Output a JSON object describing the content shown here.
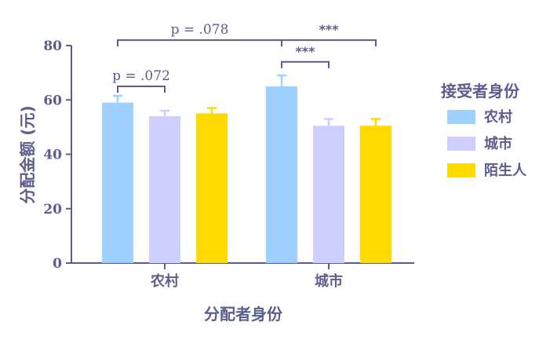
{
  "chart_data": {
    "type": "bar",
    "categories": [
      "农村",
      "城市"
    ],
    "series": [
      {
        "name": "农村",
        "color": "#9fd1ff",
        "values": [
          59,
          65
        ],
        "errors": [
          2.5,
          4
        ]
      },
      {
        "name": "城市",
        "color": "#cfcfff",
        "values": [
          54,
          50.5
        ],
        "errors": [
          2,
          2.5
        ]
      },
      {
        "name": "陌生人",
        "color": "#ffd900",
        "values": [
          55,
          50.5
        ],
        "errors": [
          2,
          2.5
        ]
      }
    ],
    "xlabel": "分配者身份",
    "ylabel": "分配金额 (元)",
    "ylim": [
      0,
      80
    ],
    "yticks": [
      0,
      20,
      40,
      60,
      80
    ],
    "legend": {
      "title": "接受者身份",
      "position": "right"
    },
    "annotations": [
      {
        "text": "p = .072",
        "type": "p-value",
        "from_category": "农村",
        "from_series": "农村",
        "to_category": "农村",
        "to_series": "城市",
        "level": 65
      },
      {
        "text": "***",
        "type": "stars",
        "from_category": "城市",
        "from_series": "农村",
        "to_category": "城市",
        "to_series": "城市",
        "level": 74
      },
      {
        "text": "p = .078",
        "type": "p-value",
        "from_category": "农村",
        "from_series": "农村",
        "to_category": "城市",
        "to_series": "农村",
        "level": 82
      },
      {
        "text": "***",
        "type": "stars",
        "from_category": "城市",
        "from_series": "农村",
        "to_category": "城市",
        "to_series": "陌生人",
        "level": 82
      }
    ],
    "grid": false,
    "colors": {
      "axis": "#5b5d8c"
    }
  }
}
